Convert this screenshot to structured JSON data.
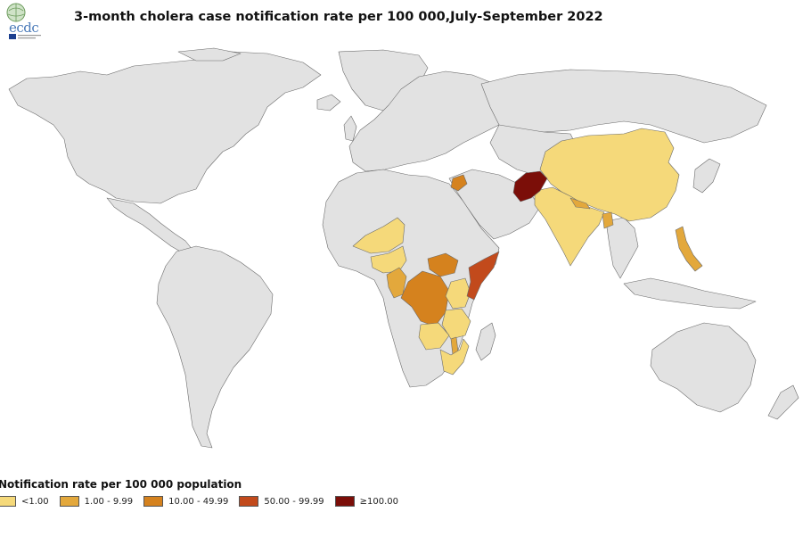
{
  "header": {
    "logo_text": "ecdc",
    "title": "3-month cholera case notification rate per 100 000,July-September 2022"
  },
  "legend": {
    "title": "Notification rate per 100 000 population",
    "items": [
      {
        "label": "<1.00",
        "color": "#f5d97a"
      },
      {
        "label": "1.00 - 9.99",
        "color": "#e3a83c"
      },
      {
        "label": "10.00 - 49.99",
        "color": "#d5821e"
      },
      {
        "label": "50.00 - 99.99",
        "color": "#c24a1c"
      },
      {
        "label": "≥100.00",
        "color": "#7b0e08"
      }
    ]
  },
  "colors": {
    "land": "#e2e2e2",
    "border": "#6b6b6b",
    "no_data": "#e2e2e2"
  },
  "regions": [
    {
      "name": "Afghanistan",
      "class": "≥100.00"
    },
    {
      "name": "Somalia",
      "class": "50.00 - 99.99"
    },
    {
      "name": "Democratic Republic of the Congo",
      "class": "10.00 - 49.99"
    },
    {
      "name": "South Sudan",
      "class": "10.00 - 49.99"
    },
    {
      "name": "Syria",
      "class": "10.00 - 49.99"
    },
    {
      "name": "Cameroon",
      "class": "1.00 - 9.99"
    },
    {
      "name": "Malawi",
      "class": "1.00 - 9.99"
    },
    {
      "name": "Philippines",
      "class": "1.00 - 9.99"
    },
    {
      "name": "Nepal",
      "class": "1.00 - 9.99"
    },
    {
      "name": "Bangladesh",
      "class": "1.00 - 9.99"
    },
    {
      "name": "China",
      "class": "<1.00"
    },
    {
      "name": "India",
      "class": "<1.00"
    },
    {
      "name": "Niger",
      "class": "<1.00"
    },
    {
      "name": "Nigeria",
      "class": "<1.00"
    },
    {
      "name": "Kenya",
      "class": "<1.00"
    },
    {
      "name": "Tanzania",
      "class": "<1.00"
    },
    {
      "name": "Zambia",
      "class": "<1.00"
    },
    {
      "name": "Mozambique",
      "class": "<1.00"
    }
  ]
}
